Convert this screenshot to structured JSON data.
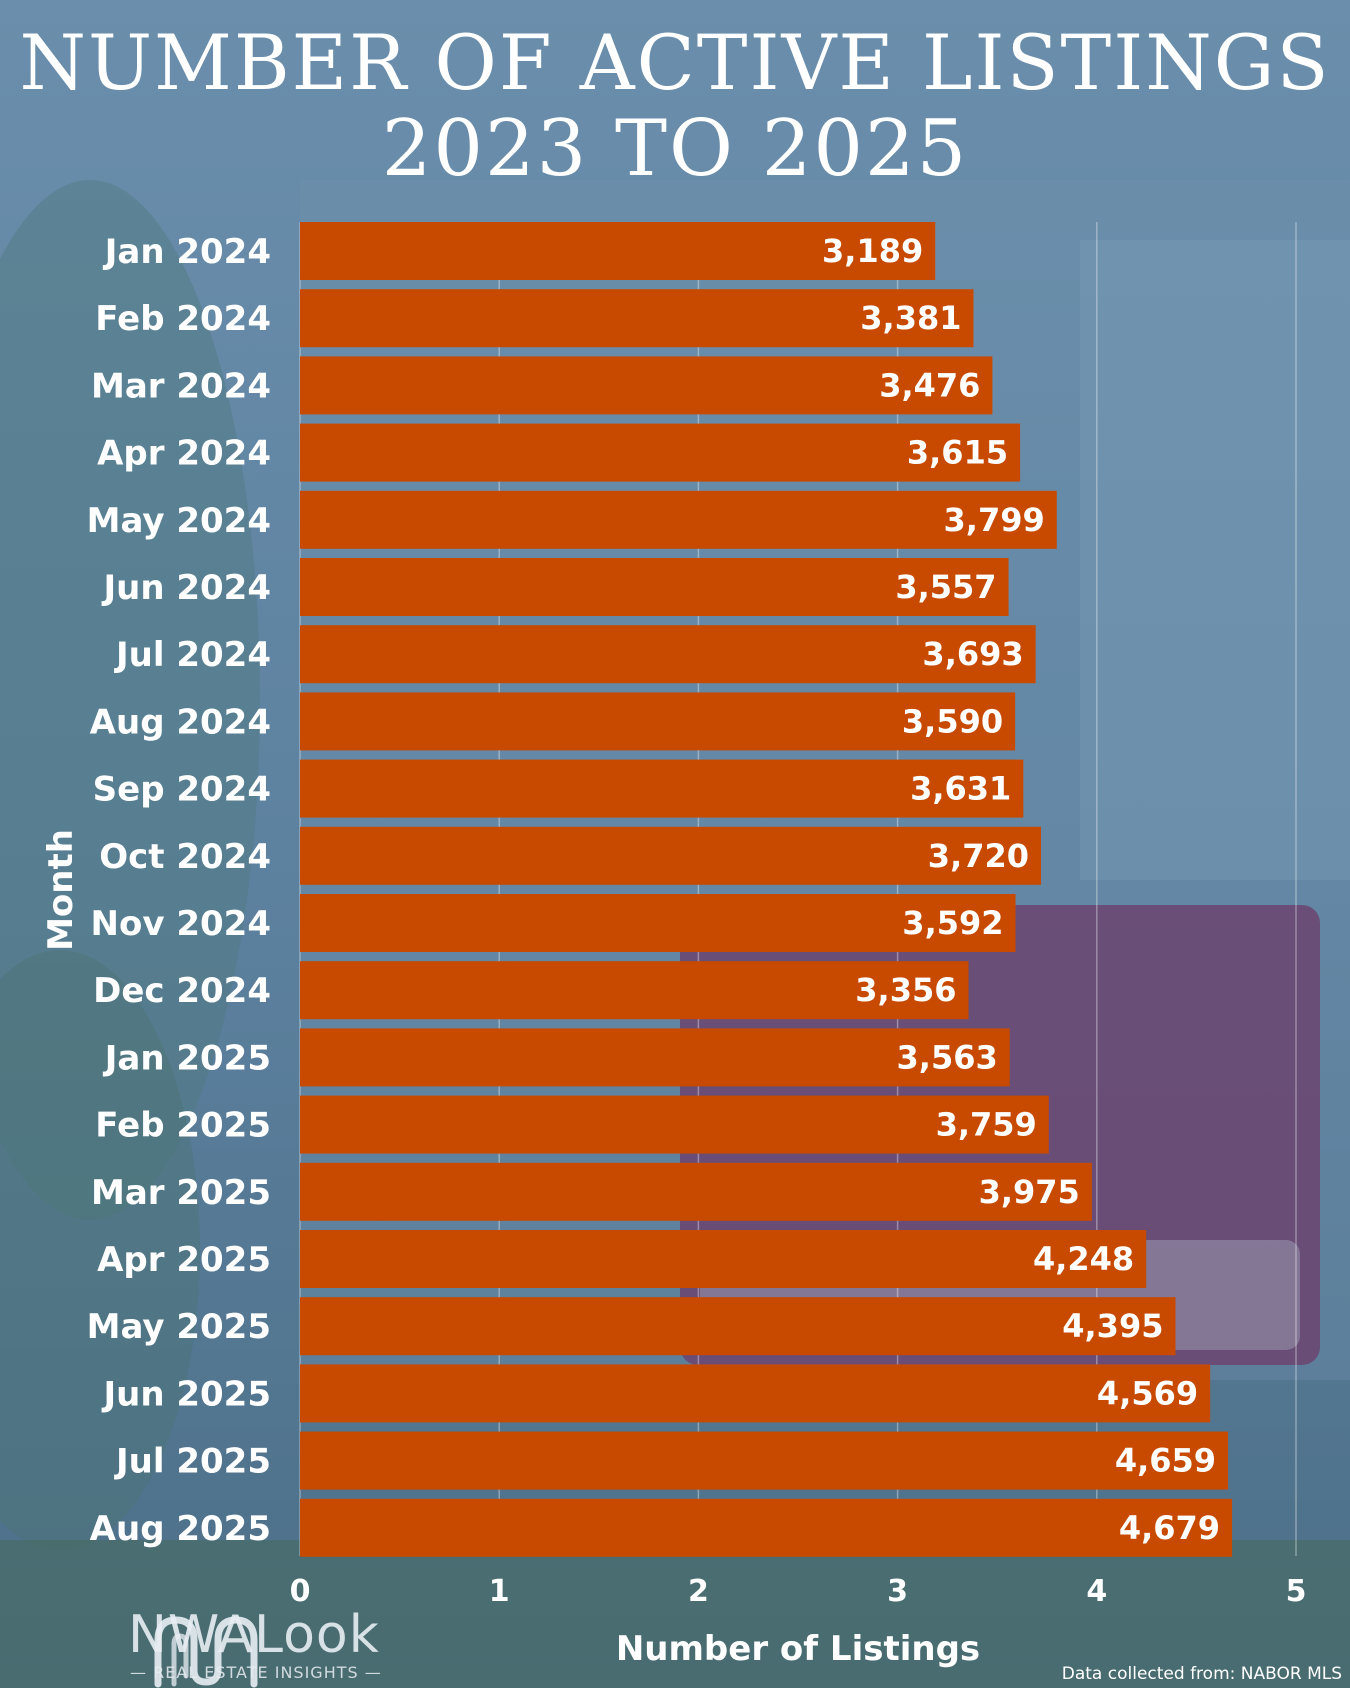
{
  "title_line_1": "NUMBER OF ACTIVE LISTINGS",
  "title_line_2": "2023 TO 2025",
  "logo": {
    "brand": "NWALook",
    "tagline": "— REAL ESTATE INSIGHTS —"
  },
  "source": "Data collected from: NABOR MLS",
  "colors": {
    "bar": "#c84a00",
    "text": "#ffffff",
    "background": "#5b7f9d"
  },
  "chart_data": {
    "type": "bar",
    "orientation": "horizontal",
    "categories": [
      "Jan 2024",
      "Feb 2024",
      "Mar 2024",
      "Apr 2024",
      "May 2024",
      "Jun 2024",
      "Jul 2024",
      "Aug 2024",
      "Sep 2024",
      "Oct 2024",
      "Nov 2024",
      "Dec 2024",
      "Jan 2025",
      "Feb 2025",
      "Mar 2025",
      "Apr 2025",
      "May 2025",
      "Jun 2025",
      "Jul 2025",
      "Aug 2025"
    ],
    "values": [
      3189,
      3381,
      3476,
      3615,
      3799,
      3557,
      3693,
      3590,
      3631,
      3720,
      3592,
      3356,
      3563,
      3759,
      3975,
      4248,
      4395,
      4569,
      4659,
      4679
    ],
    "value_labels": [
      "3,189",
      "3,381",
      "3,476",
      "3,615",
      "3,799",
      "3,557",
      "3,693",
      "3,590",
      "3,631",
      "3,720",
      "3,592",
      "3,356",
      "3,563",
      "3,759",
      "3,975",
      "4,248",
      "4,395",
      "4,569",
      "4,659",
      "4,679"
    ],
    "xlabel": "Number of Listings",
    "ylabel": "Month",
    "x_ticks": [
      0,
      1,
      2,
      3,
      4,
      5
    ],
    "x_tick_labels": [
      "0",
      "1",
      "2",
      "3",
      "4",
      "5"
    ],
    "xlim": [
      0,
      5000
    ],
    "grid": true
  }
}
